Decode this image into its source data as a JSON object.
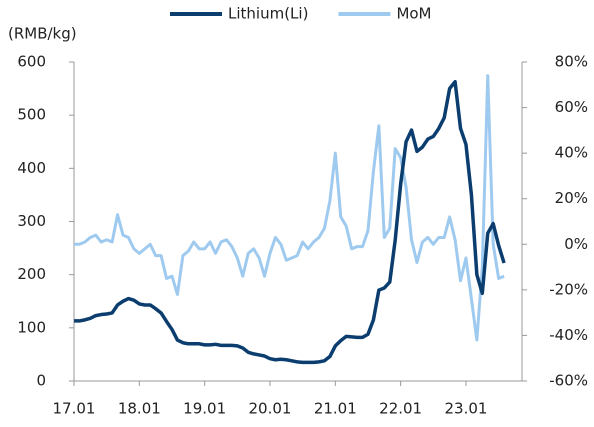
{
  "chart_data": {
    "type": "line",
    "y_label": "(RMB/kg)",
    "categories": [
      "17.01",
      null,
      null,
      null,
      null,
      null,
      null,
      null,
      null,
      null,
      null,
      null,
      "18.01",
      null,
      null,
      null,
      null,
      null,
      null,
      null,
      null,
      null,
      null,
      null,
      "19.01",
      null,
      null,
      null,
      null,
      null,
      null,
      null,
      null,
      null,
      null,
      null,
      "20.01",
      null,
      null,
      null,
      null,
      null,
      null,
      null,
      null,
      null,
      null,
      null,
      "21.01",
      null,
      null,
      null,
      null,
      null,
      null,
      null,
      null,
      null,
      null,
      null,
      "22.01",
      null,
      null,
      null,
      null,
      null,
      null,
      null,
      null,
      null,
      null,
      null,
      "23.01",
      null,
      null,
      null,
      null,
      null,
      null,
      null
    ],
    "series": [
      {
        "name": "Lithium(Li)",
        "color": "#0b3d6f",
        "values": [
          113,
          113,
          115,
          118,
          123,
          125,
          126,
          128,
          143,
          150,
          155,
          152,
          145,
          143,
          143,
          136,
          128,
          112,
          97,
          77,
          72,
          70,
          70,
          70,
          68,
          68,
          69,
          67,
          67,
          67,
          66,
          62,
          54,
          51,
          49,
          47,
          42,
          40,
          41,
          40,
          38,
          36,
          35,
          35,
          35,
          36,
          38,
          46,
          66,
          76,
          84,
          83,
          82,
          82,
          88,
          115,
          171,
          175,
          186,
          265,
          370,
          450,
          472,
          432,
          440,
          455,
          460,
          475,
          495,
          550,
          563,
          475,
          445,
          350,
          200,
          165,
          278,
          296,
          255,
          222
        ]
      },
      {
        "name": "MoM",
        "color": "#9fcaef",
        "axis": "y2",
        "values": [
          0,
          0,
          1,
          3,
          4,
          1,
          2,
          1,
          13,
          4,
          3,
          -2,
          -4,
          -2,
          0,
          -5,
          -5,
          -15,
          -14,
          -22,
          -5,
          -3,
          1,
          -2,
          -2,
          1,
          -4,
          1,
          2,
          -1,
          -6,
          -14,
          -4,
          -2,
          -6,
          -14,
          -4,
          3,
          0,
          -7,
          -6,
          -5,
          1,
          -2,
          1,
          3,
          7,
          19,
          40,
          12,
          8,
          -2,
          -1,
          -1,
          6,
          32,
          52,
          3,
          7,
          42,
          38,
          25,
          2,
          -8,
          1,
          3,
          0,
          3,
          3,
          12,
          2,
          -16,
          -6,
          -24,
          -42,
          -10,
          74,
          0,
          -15,
          -14
        ]
      }
    ],
    "ylim": [
      0,
      600
    ],
    "yticks": [
      0,
      100,
      200,
      300,
      400,
      500,
      600
    ],
    "y2lim": [
      -60,
      80
    ],
    "y2ticks": [
      {
        "value": -60,
        "label": "-60%"
      },
      {
        "value": -40,
        "label": "-40%"
      },
      {
        "value": -20,
        "label": "-20%"
      },
      {
        "value": 0,
        "label": "0%"
      },
      {
        "value": 20,
        "label": "20%"
      },
      {
        "value": 40,
        "label": "40%"
      },
      {
        "value": 60,
        "label": "60%"
      },
      {
        "value": 80,
        "label": "80%"
      }
    ],
    "legend": "top"
  }
}
